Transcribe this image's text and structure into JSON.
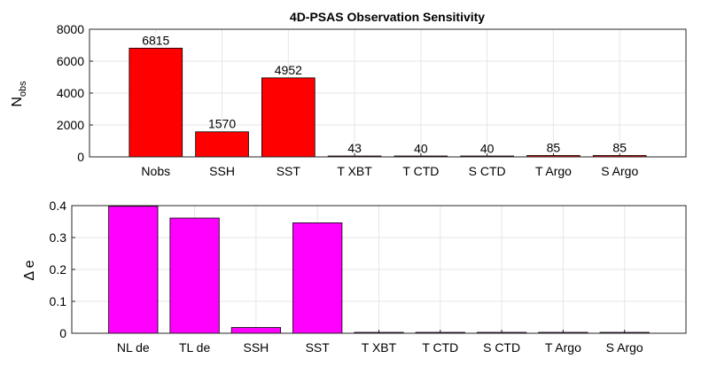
{
  "chart_data": [
    {
      "type": "bar",
      "title": "4D-PSAS Observation Sensitivity",
      "ylabel": "N",
      "ylabel_subscript": "obs",
      "xlabel": "",
      "categories": [
        "Nobs",
        "SSH",
        "SST",
        "T XBT",
        "T CTD",
        "S CTD",
        "T Argo",
        "S Argo"
      ],
      "values": [
        6815,
        1570,
        4952,
        43,
        40,
        40,
        85,
        85
      ],
      "data_labels": [
        "6815",
        "1570",
        "4952",
        "43",
        "40",
        "40",
        "85",
        "85"
      ],
      "ylim": [
        0,
        8000
      ],
      "yticks": [
        0,
        2000,
        4000,
        6000,
        8000
      ],
      "ytick_labels": [
        "0",
        "2000",
        "4000",
        "6000",
        "8000"
      ],
      "xlim": [
        0,
        9
      ],
      "bar_color": "#ff0000",
      "grid": true
    },
    {
      "type": "bar",
      "title": "",
      "ylabel": "Δ e",
      "xlabel": "",
      "categories": [
        "NL de",
        "TL de",
        "SSH",
        "SST",
        "T XBT",
        "T CTD",
        "S CTD",
        "T Argo",
        "S Argo"
      ],
      "values": [
        0.398,
        0.361,
        0.018,
        0.346,
        0.0005,
        0.0005,
        0.001,
        0.0005,
        0.001
      ],
      "ylim": [
        0,
        0.4
      ],
      "yticks": [
        0,
        0.1,
        0.2,
        0.3,
        0.4
      ],
      "ytick_labels": [
        "0",
        "0.1",
        "0.2",
        "0.3",
        "0.4"
      ],
      "xlim": [
        0,
        10
      ],
      "bar_color": "#ff00ff",
      "grid": true
    }
  ]
}
